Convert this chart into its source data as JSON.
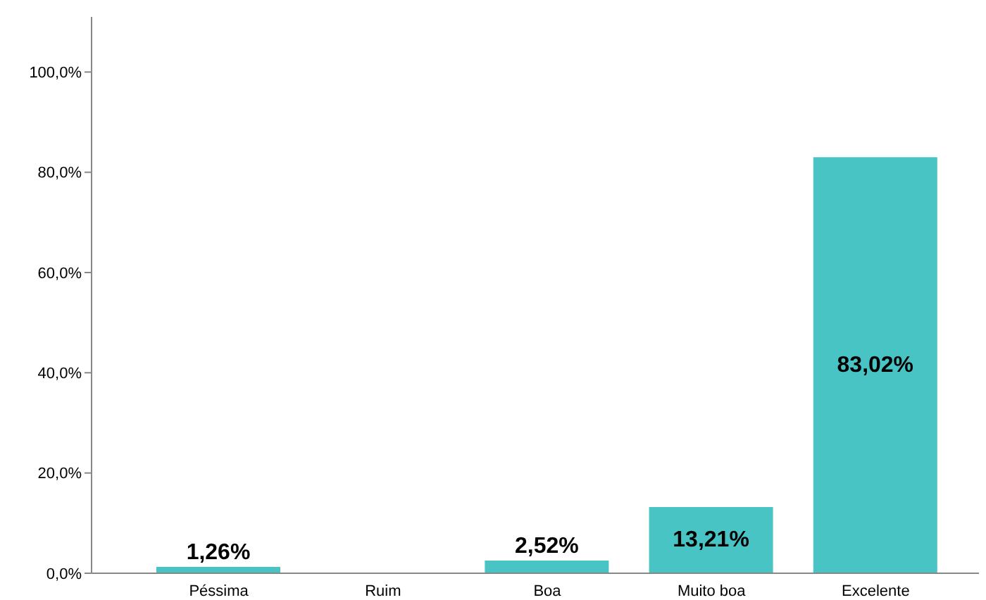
{
  "chart_data": {
    "type": "bar",
    "categories": [
      "Péssima",
      "Ruim",
      "Boa",
      "Muito boa",
      "Excelente"
    ],
    "values": [
      1.26,
      0,
      2.52,
      13.21,
      83.02
    ],
    "value_labels": [
      "1,26%",
      null,
      "2,52%",
      "13,21%",
      "83,02%"
    ],
    "color": "#48c4c4",
    "ylim": [
      0,
      111
    ],
    "yticks": [
      {
        "value": 0,
        "label": "0,0%"
      },
      {
        "value": 20,
        "label": "20,0%"
      },
      {
        "value": 40,
        "label": "40,0%"
      },
      {
        "value": 60,
        "label": "60,0%"
      },
      {
        "value": 80,
        "label": "80,0%"
      },
      {
        "value": 100,
        "label": "100,0%"
      }
    ],
    "grid": false,
    "legend": false
  }
}
